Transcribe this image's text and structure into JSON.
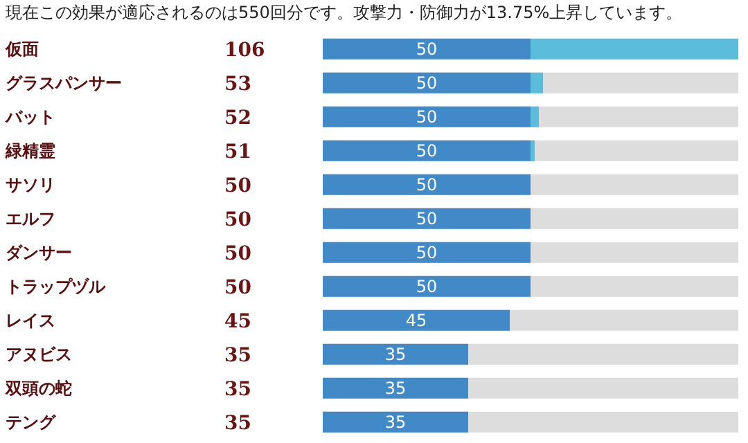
{
  "chart_data": {
    "type": "bar",
    "orientation": "horizontal",
    "stacked": true,
    "title": "現在この効果が適応されるのは550回分です。攻撃力・防御力が13.75%上昇しています。",
    "categories": [
      "仮面",
      "グラスパンサー",
      "バット",
      "緑精霊",
      "サソリ",
      "エルフ",
      "ダンサー",
      "トラップヅル",
      "レイス",
      "アヌビス",
      "双頭の蛇",
      "テング"
    ],
    "series": [
      {
        "color": "#4189c7",
        "values": [
          50,
          50,
          50,
          50,
          50,
          50,
          50,
          50,
          45,
          35,
          35,
          35
        ],
        "value_labels": [
          "50",
          "50",
          "50",
          "50",
          "50",
          "50",
          "50",
          "50",
          "45",
          "35",
          "35",
          "35"
        ]
      },
      {
        "color": "#5bbcdc",
        "values": [
          50,
          3,
          2,
          1,
          0,
          0,
          0,
          0,
          0,
          0,
          0,
          0
        ]
      }
    ],
    "annotations": [
      "106",
      "53",
      "52",
      "51",
      "50",
      "50",
      "50",
      "50",
      "45",
      "35",
      "35",
      "35"
    ],
    "xlim": [
      0,
      100
    ],
    "tick_labels": "y",
    "grid": false,
    "legend": false
  }
}
